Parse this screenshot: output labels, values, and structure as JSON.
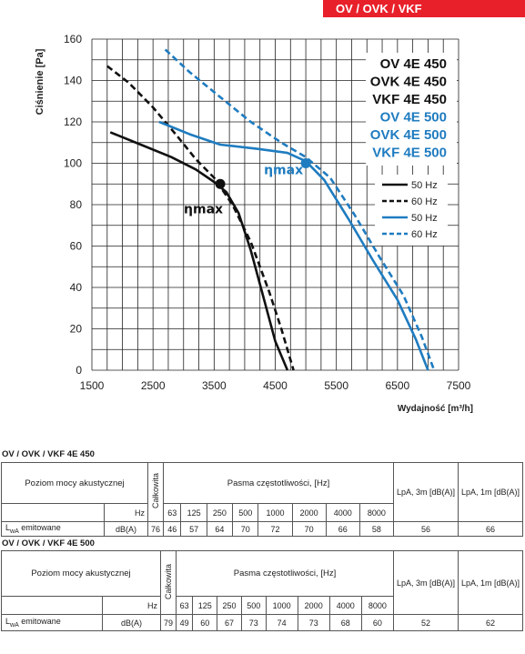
{
  "header": {
    "badge": "OV / OVK / VKF"
  },
  "chart_data": {
    "type": "line",
    "ylabel": "Ciśnienie [Pa]",
    "xlabel": "Wydajność [m³/h]",
    "xlim": [
      1500,
      7500
    ],
    "ylim": [
      0,
      160
    ],
    "x_ticks": [
      "1500",
      "2500",
      "3500",
      "4500",
      "5500",
      "6500",
      "7500"
    ],
    "y_ticks": [
      "0",
      "20",
      "40",
      "60",
      "80",
      "100",
      "120",
      "140",
      "160"
    ],
    "grid": true,
    "model_labels": [
      {
        "text": "OV 4E 450",
        "color": "#111111"
      },
      {
        "text": "OVK 4E 450",
        "color": "#111111"
      },
      {
        "text": "VKF 4E 450",
        "color": "#111111"
      },
      {
        "text": "OV 4E 500",
        "color": "#1f7cc0"
      },
      {
        "text": "OVK 4E 500",
        "color": "#1f7cc0"
      },
      {
        "text": "VKF 4E 500",
        "color": "#1f7cc0"
      }
    ],
    "legend_position": "right",
    "series": [
      {
        "name": "50 Hz",
        "color": "#111111",
        "dash": false,
        "x": [
          1800,
          2300,
          2800,
          3200,
          3500,
          3700,
          3900,
          4100,
          4300,
          4500,
          4700
        ],
        "y": [
          115,
          109,
          103,
          97,
          91,
          86,
          76,
          58,
          36,
          14,
          0
        ]
      },
      {
        "name": "60 Hz",
        "color": "#111111",
        "dash": true,
        "x": [
          1750,
          2100,
          2500,
          2900,
          3200,
          3500,
          3800,
          4100,
          4400,
          4600,
          4800
        ],
        "y": [
          147,
          139,
          127,
          113,
          102,
          93,
          80,
          62,
          38,
          20,
          0
        ]
      },
      {
        "name": "50 Hz",
        "color": "#1f7cc0",
        "dash": false,
        "x": [
          2600,
          3100,
          3600,
          4200,
          4700,
          5000,
          5300,
          5700,
          6100,
          6500,
          6800,
          7000
        ],
        "y": [
          120,
          114,
          109,
          107,
          105,
          101,
          92,
          73,
          53,
          34,
          15,
          0
        ]
      },
      {
        "name": "60 Hz",
        "color": "#1f7cc0",
        "dash": true,
        "x": [
          2700,
          3100,
          3600,
          4100,
          4600,
          5000,
          5400,
          5800,
          6200,
          6600,
          6900,
          7100
        ],
        "y": [
          155,
          144,
          132,
          120,
          110,
          103,
          93,
          75,
          55,
          36,
          16,
          0
        ]
      }
    ],
    "points": [
      {
        "label": "ηmax",
        "x": 3600,
        "y": 90,
        "color": "#111111"
      },
      {
        "label": "ηmax",
        "x": 5000,
        "y": 100,
        "color": "#1f7cc0"
      }
    ]
  },
  "tables": [
    {
      "title": "OV / OVK / VKF 4E 450",
      "row_header": "Poziom mocy akustycznej",
      "total_label": "Całkowita",
      "bands_header": "Pasma częstotliwości, [Hz]",
      "lpa3_label": "LpA, 3m [dB(A)]",
      "lpa1_label": "LpA, 1m [dB(A)]",
      "hz_label": "Hz",
      "bands": [
        "63",
        "125",
        "250",
        "500",
        "1000",
        "2000",
        "4000",
        "8000"
      ],
      "lw_label": "LwA emitowane",
      "unit": "dB(A)",
      "total": "76",
      "values": [
        "46",
        "57",
        "64",
        "70",
        "72",
        "70",
        "66",
        "58"
      ],
      "lpa3": "56",
      "lpa1": "66"
    },
    {
      "title": "OV / OVK / VKF 4E 500",
      "row_header": "Poziom mocy akustycznej",
      "total_label": "Całkowita",
      "bands_header": "Pasma częstotliwości, [Hz]",
      "lpa3_label": "LpA, 3m [dB(A)]",
      "lpa1_label": "LpA, 1m [dB(A)]",
      "hz_label": "Hz",
      "bands": [
        "63",
        "125",
        "250",
        "500",
        "1000",
        "2000",
        "4000",
        "8000"
      ],
      "lw_label": "LwA emitowane",
      "unit": "dB(A)",
      "total": "79",
      "values": [
        "49",
        "60",
        "67",
        "73",
        "74",
        "73",
        "68",
        "60"
      ],
      "lpa3": "52",
      "lpa1": "62"
    }
  ]
}
